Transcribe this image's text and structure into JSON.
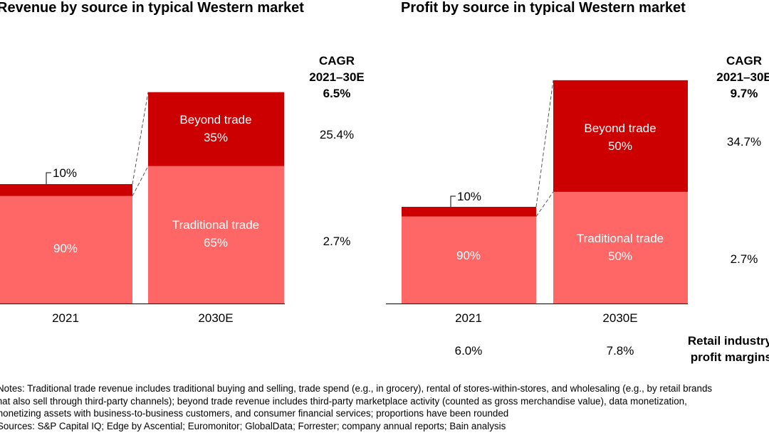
{
  "chart_data": [
    {
      "type": "bar",
      "stacked": true,
      "title": "Revenue by source in typical Western market",
      "categories": [
        "2021",
        "2030E"
      ],
      "relative_total_index": [
        100,
        177
      ],
      "series": [
        {
          "name": "Traditional trade",
          "values": [
            90,
            65
          ],
          "labels": [
            "90%",
            "Traditional trade\n65%"
          ],
          "color": "#FF6666",
          "cagr": "2.7%"
        },
        {
          "name": "Beyond trade",
          "values": [
            10,
            35
          ],
          "labels": [
            "10%",
            "Beyond trade\n35%"
          ],
          "color": "#CC0000",
          "cagr": "25.4%"
        }
      ],
      "cagr_header": [
        "CAGR",
        "2021–30E"
      ],
      "cagr_total": "6.5%"
    },
    {
      "type": "bar",
      "stacked": true,
      "title": "Profit by source in typical Western market",
      "categories": [
        "2021",
        "2030E"
      ],
      "relative_total_index": [
        100,
        231
      ],
      "series": [
        {
          "name": "Traditional trade",
          "values": [
            90,
            50
          ],
          "labels": [
            "90%",
            "Traditional trade\n50%"
          ],
          "color": "#FF6666",
          "cagr": "2.7%"
        },
        {
          "name": "Beyond trade",
          "values": [
            10,
            50
          ],
          "labels": [
            "10%",
            "Beyond trade\n50%"
          ],
          "color": "#CC0000",
          "cagr": "34.7%"
        }
      ],
      "cagr_header": [
        "CAGR",
        "2021–30E"
      ],
      "cagr_total": "9.7%",
      "margins_label": [
        "Retail industry",
        "profit margins"
      ],
      "margins": [
        "6.0%",
        "7.8%"
      ]
    }
  ],
  "notes": [
    "Notes: Traditional trade revenue includes traditional buying and selling, trade spend (e.g., in grocery), rental of stores-within-stores, and wholesaling (e.g., by retail brands",
    "that also sell through third-party channels); beyond trade revenue includes third-party marketplace activity (counted as gross merchandise value), data monetization,",
    "monetizing assets with business-to-business customers, and consumer financial services; proportions have been rounded",
    "Sources: S&P Capital IQ; Edge by Ascential; Euromonitor; GlobalData; Forrester; company annual reports; Bain analysis"
  ]
}
